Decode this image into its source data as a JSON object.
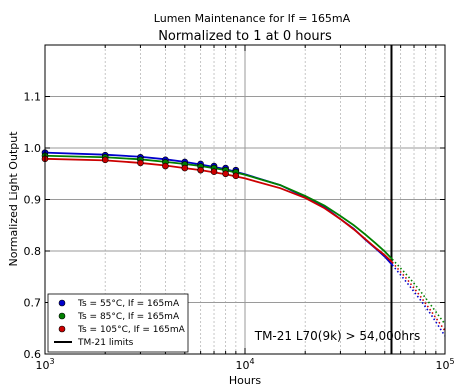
{
  "chart_data": {
    "type": "line",
    "title": "Lumen Maintenance for If = 165mA",
    "subtitle": "Normalized to 1 at 0 hours",
    "xlabel": "Hours",
    "ylabel": "Normalized Light Output",
    "x_scale": "log",
    "xlim": [
      1000,
      100000
    ],
    "ylim": [
      0.6,
      1.2
    ],
    "x_ticks": [
      {
        "value": 1000,
        "base": "10",
        "exp": "3"
      },
      {
        "value": 10000,
        "base": "10",
        "exp": "4"
      },
      {
        "value": 100000,
        "base": "10",
        "exp": "5"
      }
    ],
    "y_ticks": [
      {
        "value": 0.6,
        "label": "0.6"
      },
      {
        "value": 0.7,
        "label": "0.7"
      },
      {
        "value": 0.8,
        "label": "0.8"
      },
      {
        "value": 0.9,
        "label": "0.9"
      },
      {
        "value": 1.0,
        "label": "1.0"
      },
      {
        "value": 1.1,
        "label": "1.1"
      }
    ],
    "grid": true,
    "legend_position": "bottom-left",
    "series": [
      {
        "name": "Ts = 55°C, If = 165mA",
        "color": "#0000cc",
        "points": [
          {
            "x": 1000,
            "y": 0.991
          },
          {
            "x": 2000,
            "y": 0.986
          },
          {
            "x": 3000,
            "y": 0.982
          },
          {
            "x": 4000,
            "y": 0.977
          },
          {
            "x": 5000,
            "y": 0.973
          },
          {
            "x": 6000,
            "y": 0.969
          },
          {
            "x": 7000,
            "y": 0.965
          },
          {
            "x": 8000,
            "y": 0.961
          },
          {
            "x": 9000,
            "y": 0.957
          }
        ],
        "fit": [
          {
            "x": 1000,
            "y": 0.991
          },
          {
            "x": 2000,
            "y": 0.987
          },
          {
            "x": 3000,
            "y": 0.983
          },
          {
            "x": 4000,
            "y": 0.978
          },
          {
            "x": 5000,
            "y": 0.973
          },
          {
            "x": 6000,
            "y": 0.968
          },
          {
            "x": 8000,
            "y": 0.959
          },
          {
            "x": 10000,
            "y": 0.949
          },
          {
            "x": 15000,
            "y": 0.928
          },
          {
            "x": 20000,
            "y": 0.905
          },
          {
            "x": 25000,
            "y": 0.885
          },
          {
            "x": 30000,
            "y": 0.862
          },
          {
            "x": 35000,
            "y": 0.843
          },
          {
            "x": 40000,
            "y": 0.822
          },
          {
            "x": 45000,
            "y": 0.805
          },
          {
            "x": 50000,
            "y": 0.789
          },
          {
            "x": 54500,
            "y": 0.773
          }
        ],
        "extrapolation": [
          {
            "x": 54500,
            "y": 0.773
          },
          {
            "x": 65000,
            "y": 0.737
          },
          {
            "x": 75000,
            "y": 0.706
          },
          {
            "x": 85000,
            "y": 0.677
          },
          {
            "x": 100000,
            "y": 0.635
          }
        ]
      },
      {
        "name": "Ts = 85°C, If = 165mA",
        "color": "#008000",
        "points": [
          {
            "x": 1000,
            "y": 0.985
          },
          {
            "x": 2000,
            "y": 0.982
          },
          {
            "x": 3000,
            "y": 0.977
          },
          {
            "x": 4000,
            "y": 0.972
          },
          {
            "x": 5000,
            "y": 0.968
          },
          {
            "x": 6000,
            "y": 0.964
          },
          {
            "x": 7000,
            "y": 0.961
          },
          {
            "x": 8000,
            "y": 0.957
          },
          {
            "x": 9000,
            "y": 0.953
          }
        ],
        "fit": [
          {
            "x": 1000,
            "y": 0.985
          },
          {
            "x": 2000,
            "y": 0.982
          },
          {
            "x": 3000,
            "y": 0.978
          },
          {
            "x": 4000,
            "y": 0.973
          },
          {
            "x": 5000,
            "y": 0.969
          },
          {
            "x": 6000,
            "y": 0.965
          },
          {
            "x": 8000,
            "y": 0.957
          },
          {
            "x": 10000,
            "y": 0.948
          },
          {
            "x": 15000,
            "y": 0.928
          },
          {
            "x": 20000,
            "y": 0.907
          },
          {
            "x": 25000,
            "y": 0.888
          },
          {
            "x": 30000,
            "y": 0.868
          },
          {
            "x": 35000,
            "y": 0.85
          },
          {
            "x": 40000,
            "y": 0.832
          },
          {
            "x": 45000,
            "y": 0.815
          },
          {
            "x": 50000,
            "y": 0.799
          },
          {
            "x": 54500,
            "y": 0.784
          }
        ],
        "extrapolation": [
          {
            "x": 54500,
            "y": 0.784
          },
          {
            "x": 65000,
            "y": 0.752
          },
          {
            "x": 75000,
            "y": 0.723
          },
          {
            "x": 85000,
            "y": 0.695
          },
          {
            "x": 100000,
            "y": 0.658
          }
        ]
      },
      {
        "name": "Ts = 105°C, If = 165mA",
        "color": "#cc0000",
        "points": [
          {
            "x": 1000,
            "y": 0.979
          },
          {
            "x": 2000,
            "y": 0.977
          },
          {
            "x": 3000,
            "y": 0.971
          },
          {
            "x": 4000,
            "y": 0.965
          },
          {
            "x": 5000,
            "y": 0.961
          },
          {
            "x": 6000,
            "y": 0.957
          },
          {
            "x": 7000,
            "y": 0.954
          },
          {
            "x": 8000,
            "y": 0.95
          },
          {
            "x": 9000,
            "y": 0.946
          }
        ],
        "fit": [
          {
            "x": 1000,
            "y": 0.979
          },
          {
            "x": 2000,
            "y": 0.976
          },
          {
            "x": 3000,
            "y": 0.971
          },
          {
            "x": 4000,
            "y": 0.966
          },
          {
            "x": 5000,
            "y": 0.961
          },
          {
            "x": 6000,
            "y": 0.957
          },
          {
            "x": 8000,
            "y": 0.949
          },
          {
            "x": 10000,
            "y": 0.941
          },
          {
            "x": 15000,
            "y": 0.922
          },
          {
            "x": 20000,
            "y": 0.903
          },
          {
            "x": 25000,
            "y": 0.883
          },
          {
            "x": 30000,
            "y": 0.862
          },
          {
            "x": 35000,
            "y": 0.842
          },
          {
            "x": 40000,
            "y": 0.823
          },
          {
            "x": 45000,
            "y": 0.806
          },
          {
            "x": 50000,
            "y": 0.792
          },
          {
            "x": 54500,
            "y": 0.778
          }
        ],
        "extrapolation": [
          {
            "x": 54500,
            "y": 0.778
          },
          {
            "x": 65000,
            "y": 0.744
          },
          {
            "x": 75000,
            "y": 0.713
          },
          {
            "x": 85000,
            "y": 0.684
          },
          {
            "x": 100000,
            "y": 0.645
          }
        ]
      }
    ],
    "limit_line": {
      "name": "TM-21 limits",
      "x": 54000,
      "color": "#000000"
    },
    "annotation": {
      "text": "TM-21 L70(9k) > 54,000hrs",
      "x": 29000,
      "y": 0.627
    }
  }
}
